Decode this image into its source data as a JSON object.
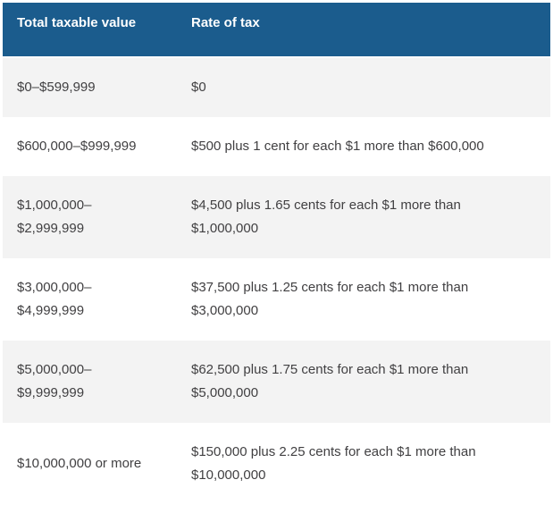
{
  "table": {
    "columns": [
      {
        "label": "Total taxable value"
      },
      {
        "label": "Rate of tax"
      }
    ],
    "rows": [
      {
        "range": "$0–$599,999",
        "rate": "$0"
      },
      {
        "range": "$600,000–$999,999",
        "rate": "$500 plus 1 cent for each $1 more than $600,000"
      },
      {
        "range": "$1,000,000–\n$2,999,999",
        "rate": "$4,500 plus 1.65 cents for each $1 more than\n$1,000,000"
      },
      {
        "range": "$3,000,000–\n$4,999,999",
        "rate": "$37,500 plus 1.25 cents for each $1 more than\n$3,000,000"
      },
      {
        "range": "$5,000,000–\n$9,999,999",
        "rate": "$62,500 plus 1.75 cents for each $1 more than\n$5,000,000"
      },
      {
        "range": "$10,000,000 or more",
        "rate": "$150,000 plus 2.25 cents for each $1 more than\n$10,000,000"
      }
    ],
    "colors": {
      "header_bg": "#1b5c8d",
      "header_text": "#ffffff",
      "row_alt_bg": "#f3f3f3",
      "row_bg": "#ffffff",
      "body_text": "#414042",
      "page_bg": "#ffffff"
    }
  }
}
